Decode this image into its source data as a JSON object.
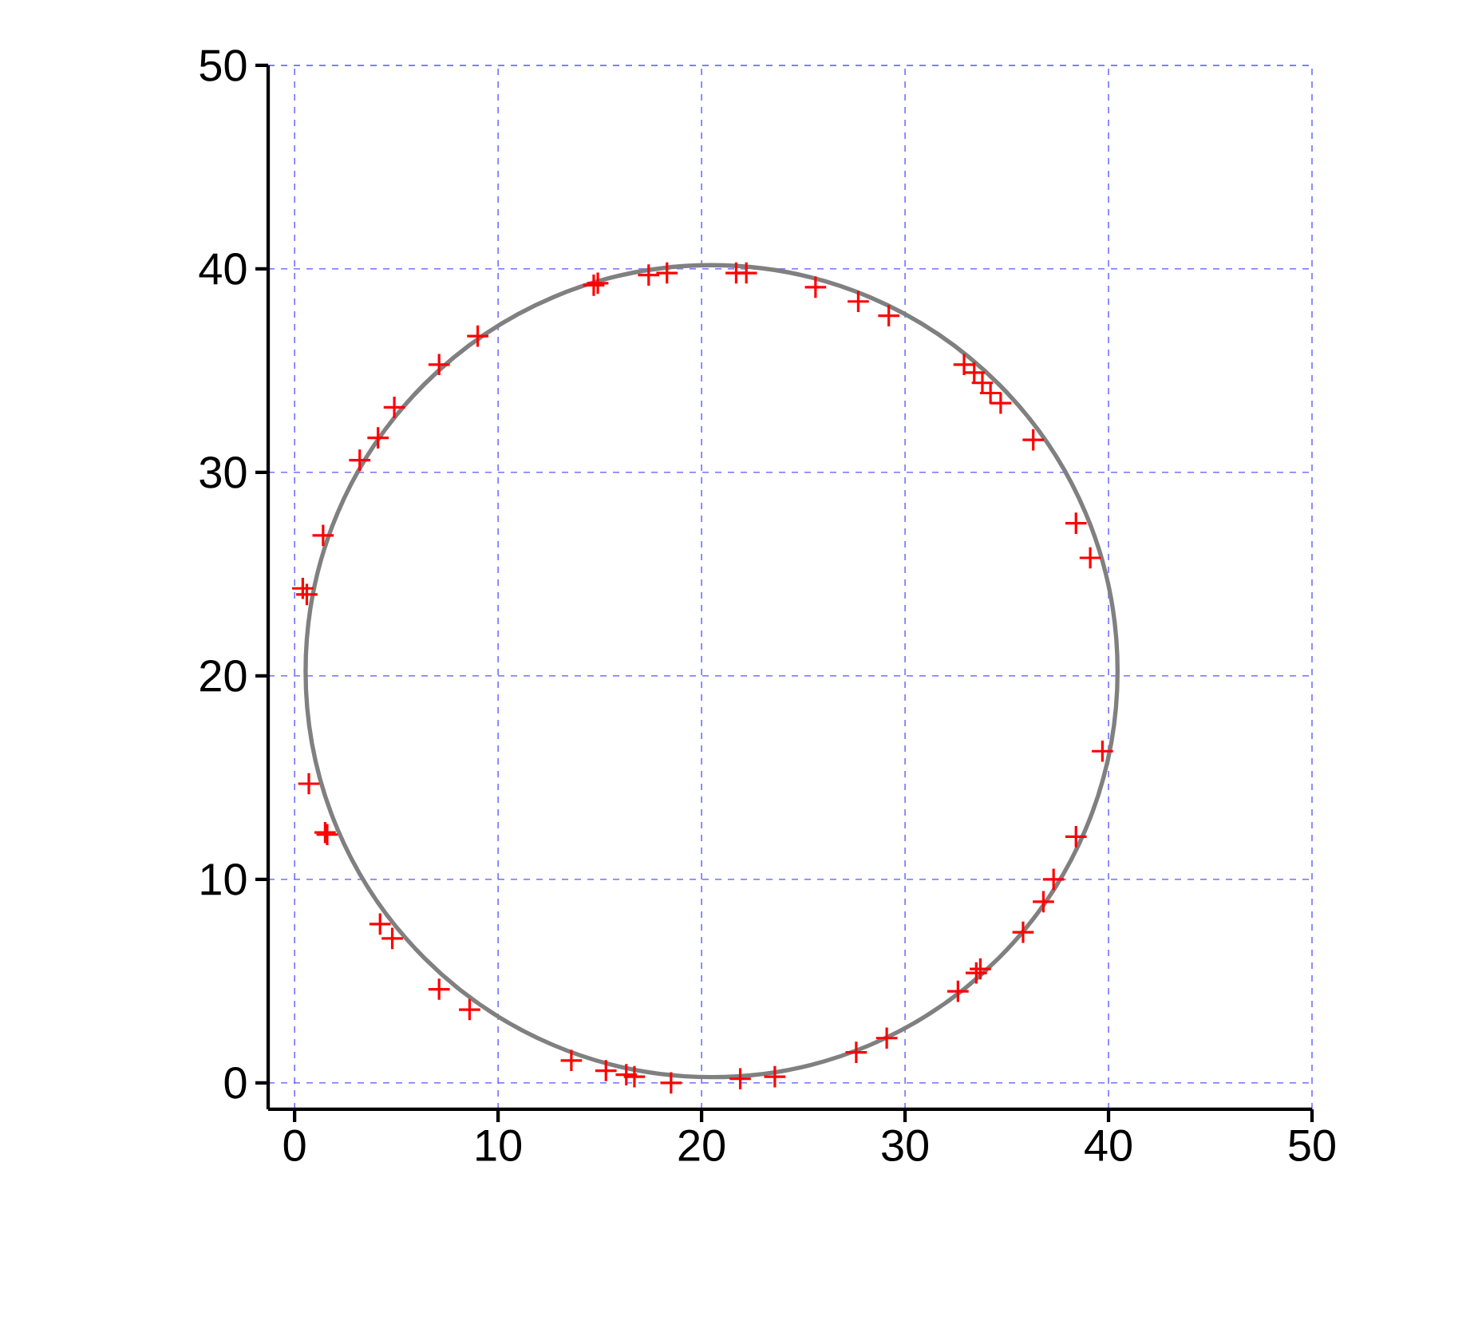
{
  "chart_data": {
    "type": "scatter",
    "xlim": [
      -1.3,
      50
    ],
    "ylim": [
      -1.3,
      50
    ],
    "xticks": [
      0,
      10,
      20,
      30,
      40,
      50
    ],
    "yticks": [
      0,
      10,
      20,
      30,
      40,
      50
    ],
    "grid": true,
    "series": [
      {
        "color": "#ff0000",
        "marker": "cross",
        "x": [
          0.4,
          0.6,
          1.4,
          3.2,
          4.1,
          4.9,
          7.1,
          9.0,
          14.7,
          14.9,
          17.4,
          18.3,
          21.7,
          22.2,
          25.6,
          27.7,
          29.2,
          32.9,
          33.4,
          33.8,
          34.2,
          34.7,
          36.3,
          38.4,
          39.1,
          39.7,
          38.4,
          37.3,
          36.8,
          35.8,
          33.7,
          33.5,
          32.6,
          29.1,
          27.6,
          23.6,
          21.9,
          18.5,
          16.7,
          16.3,
          15.3,
          13.6,
          8.6,
          7.1,
          4.8,
          4.2,
          1.6,
          1.5,
          0.7
        ],
        "values": [
          24.3,
          24.0,
          26.9,
          30.6,
          31.7,
          33.2,
          35.3,
          36.7,
          39.2,
          39.3,
          39.7,
          39.8,
          39.8,
          39.8,
          39.1,
          38.4,
          37.7,
          35.3,
          34.9,
          34.4,
          33.9,
          33.4,
          31.6,
          27.5,
          25.8,
          16.3,
          12.1,
          10.0,
          8.9,
          7.4,
          5.6,
          5.4,
          4.5,
          2.2,
          1.5,
          0.3,
          0.2,
          0.0,
          0.3,
          0.4,
          0.6,
          1.1,
          3.6,
          4.6,
          7.1,
          7.8,
          12.2,
          12.3,
          14.7
        ]
      }
    ]
  }
}
